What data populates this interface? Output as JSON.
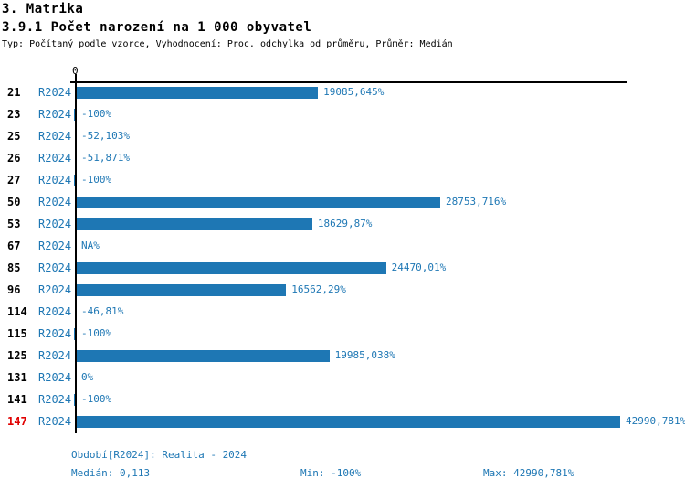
{
  "header": {
    "title": "3. Matrika",
    "subtitle": "3.9.1 Počet narození na 1 000 obyvatel",
    "meta": "Typ: Počítaný podle vzorce, Vyhodnocení: Proc. odchylka od průměru, Průměr: Medián"
  },
  "chart_data": {
    "type": "bar",
    "orientation": "horizontal",
    "title": "3.9.1 Počet narození na 1 000 obyvatel",
    "axis_zero_label": "0",
    "series_label": "R2024",
    "categories": [
      "21",
      "23",
      "25",
      "26",
      "27",
      "50",
      "53",
      "67",
      "85",
      "96",
      "114",
      "115",
      "125",
      "131",
      "141",
      "147"
    ],
    "values": [
      19085.645,
      -100,
      -52.103,
      -51.871,
      -100,
      28753.716,
      18629.87,
      null,
      24470.01,
      16562.29,
      -46.81,
      -100,
      19985.038,
      0,
      -100,
      42990.781
    ],
    "value_labels": [
      "19085,645%",
      "-100%",
      "-52,103%",
      "-51,871%",
      "-100%",
      "28753,716%",
      "18629,87%",
      "NA%",
      "24470,01%",
      "16562,29%",
      "-46,81%",
      "-100%",
      "19985,038%",
      "0%",
      "-100%",
      "42990,781%"
    ],
    "highlighted_category": "147",
    "xlim": [
      0,
      42990.781
    ],
    "grid": false,
    "legend": "none",
    "bar_color": "#1e77b4",
    "value_label_color": "#1e77b4",
    "highlight_color": "#e00000"
  },
  "footer": {
    "period": "Období[R2024]: Realita - 2024",
    "median": "Medián: 0,113",
    "min": "Min: -100%",
    "max": "Max: 42990,781%"
  }
}
